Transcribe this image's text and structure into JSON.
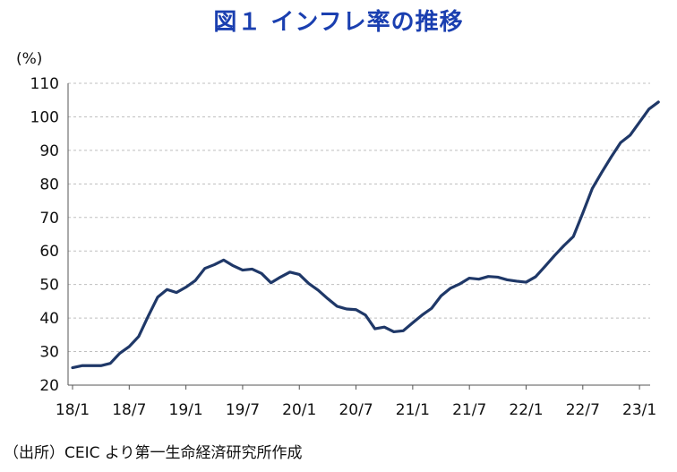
{
  "chart_data": {
    "type": "line",
    "title": "図１ インフレ率の推移",
    "unit_label": "(%)",
    "xlabel": "",
    "ylabel": "",
    "ylim": [
      20,
      110
    ],
    "yticks": [
      20,
      30,
      40,
      50,
      60,
      70,
      80,
      90,
      100,
      110
    ],
    "x_tick_labels": [
      "18/1",
      "18/7",
      "19/1",
      "19/7",
      "20/1",
      "20/7",
      "21/1",
      "21/7",
      "22/1",
      "22/7",
      "23/1"
    ],
    "grid": true,
    "legend": "none",
    "line_color": "#1f3868",
    "x": [
      "18/1",
      "18/2",
      "18/3",
      "18/4",
      "18/5",
      "18/6",
      "18/7",
      "18/8",
      "18/9",
      "18/10",
      "18/11",
      "18/12",
      "19/1",
      "19/2",
      "19/3",
      "19/4",
      "19/5",
      "19/6",
      "19/7",
      "19/8",
      "19/9",
      "19/10",
      "19/11",
      "19/12",
      "20/1",
      "20/2",
      "20/3",
      "20/4",
      "20/5",
      "20/6",
      "20/7",
      "20/8",
      "20/9",
      "20/10",
      "20/11",
      "20/12",
      "21/1",
      "21/2",
      "21/3",
      "21/4",
      "21/5",
      "21/6",
      "21/7",
      "21/8",
      "21/9",
      "21/10",
      "21/11",
      "21/12",
      "22/1",
      "22/2",
      "22/3",
      "22/4",
      "22/5",
      "22/6",
      "22/7",
      "22/8",
      "22/9",
      "22/10",
      "22/11",
      "22/12",
      "23/1",
      "23/2",
      "23/3"
    ],
    "values": [
      25.2,
      25.8,
      25.8,
      25.8,
      26.5,
      29.5,
      31.5,
      34.5,
      40.5,
      46.2,
      48.5,
      47.6,
      49.2,
      51.2,
      54.8,
      55.9,
      57.3,
      55.6,
      54.3,
      54.6,
      53.3,
      50.5,
      52.2,
      53.7,
      53.0,
      50.3,
      48.3,
      45.8,
      43.5,
      42.7,
      42.5,
      40.9,
      36.8,
      37.3,
      35.9,
      36.2,
      38.6,
      40.9,
      42.9,
      46.6,
      48.9,
      50.2,
      51.9,
      51.6,
      52.4,
      52.2,
      51.4,
      51.0,
      50.7,
      52.3,
      55.4,
      58.6,
      61.6,
      64.3,
      71.3,
      78.6,
      83.4,
      88.0,
      92.3,
      94.5,
      98.4,
      102.3,
      104.4
    ]
  },
  "source_note": "（出所）CEIC より第一生命経済研究所作成"
}
